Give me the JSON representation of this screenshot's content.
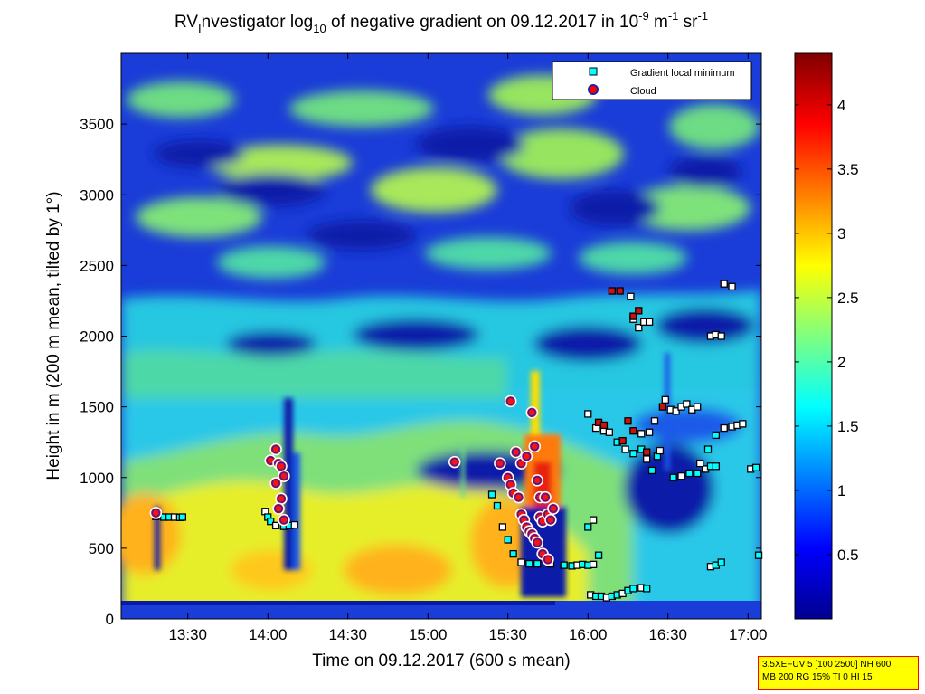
{
  "chart_data": {
    "type": "heatmap",
    "title_parts": {
      "pre": "RV",
      "sub1": "I",
      "mid": "nvestigator log",
      "sub2": "10",
      "post": " of negative gradient on 09.12.2017 in 10",
      "sup1": "-9",
      "unit1": " m",
      "sup2": "-1",
      "unit2": " sr",
      "sup3": "-1"
    },
    "xlabel": "Time on 09.12.2017 (600 s mean)",
    "ylabel": "Height in m (200 m mean, tilted by 1°)",
    "x_range_minutes": [
      785,
      1025
    ],
    "y_range": [
      0,
      4000
    ],
    "x_ticks": [
      {
        "label": "13:30",
        "minutes": 810
      },
      {
        "label": "14:00",
        "minutes": 840
      },
      {
        "label": "14:30",
        "minutes": 870
      },
      {
        "label": "15:00",
        "minutes": 900
      },
      {
        "label": "15:30",
        "minutes": 930
      },
      {
        "label": "16:00",
        "minutes": 960
      },
      {
        "label": "16:30",
        "minutes": 990
      },
      {
        "label": "17:00",
        "minutes": 1020
      }
    ],
    "y_ticks": [
      0,
      500,
      1000,
      1500,
      2000,
      2500,
      3000,
      3500
    ],
    "colorbar": {
      "range": [
        0,
        4.4
      ],
      "ticks": [
        "0.5",
        "1",
        "1.5",
        "2",
        "2.5",
        "3",
        "3.5",
        "4"
      ],
      "colormap": "jet"
    },
    "legend": {
      "position": "top-right",
      "entries": [
        {
          "label": "Gradient local minimum",
          "marker": "square",
          "color": "#00ffff"
        },
        {
          "label": "Cloud",
          "marker": "circle",
          "color": "#ff0000"
        }
      ]
    },
    "gradient_minimum_series": [
      [
        798,
        725
      ],
      [
        801,
        720
      ],
      [
        803,
        720
      ],
      [
        805,
        720
      ],
      [
        807,
        718
      ],
      [
        808,
        720
      ],
      [
        839,
        760
      ],
      [
        840,
        720
      ],
      [
        841,
        690
      ],
      [
        843,
        660
      ],
      [
        846,
        655
      ],
      [
        848,
        660
      ],
      [
        850,
        665
      ],
      [
        924,
        880
      ],
      [
        926,
        800
      ],
      [
        928,
        650
      ],
      [
        930,
        560
      ],
      [
        932,
        460
      ],
      [
        935,
        400
      ],
      [
        938,
        390
      ],
      [
        941,
        390
      ],
      [
        946,
        390
      ],
      [
        951,
        380
      ],
      [
        954,
        375
      ],
      [
        956,
        380
      ],
      [
        958,
        385
      ],
      [
        960,
        380
      ],
      [
        962,
        385
      ],
      [
        964,
        450
      ],
      [
        960,
        650
      ],
      [
        962,
        700
      ],
      [
        960,
        1450
      ],
      [
        963,
        1350
      ],
      [
        966,
        1330
      ],
      [
        968,
        1320
      ],
      [
        971,
        1250
      ],
      [
        974,
        1200
      ],
      [
        977,
        1170
      ],
      [
        980,
        1200
      ],
      [
        980,
        1310
      ],
      [
        983,
        1320
      ],
      [
        985,
        1400
      ],
      [
        982,
        1130
      ],
      [
        984,
        1050
      ],
      [
        986,
        1150
      ],
      [
        987,
        1190
      ],
      [
        989,
        1550
      ],
      [
        991,
        1480
      ],
      [
        993,
        1470
      ],
      [
        995,
        1500
      ],
      [
        997,
        1520
      ],
      [
        999,
        1480
      ],
      [
        1001,
        1500
      ],
      [
        992,
        1000
      ],
      [
        995,
        1010
      ],
      [
        998,
        1030
      ],
      [
        1001,
        1030
      ],
      [
        1004,
        1060
      ],
      [
        1006,
        1080
      ],
      [
        1008,
        1080
      ],
      [
        1002,
        1100
      ],
      [
        1005,
        1200
      ],
      [
        1008,
        1300
      ],
      [
        1011,
        1350
      ],
      [
        1014,
        1360
      ],
      [
        1016,
        1370
      ],
      [
        1018,
        1380
      ],
      [
        1006,
        2000
      ],
      [
        1008,
        2010
      ],
      [
        1010,
        2000
      ],
      [
        1011,
        2370
      ],
      [
        1014,
        2350
      ],
      [
        1021,
        1060
      ],
      [
        1023,
        1070
      ],
      [
        1024,
        450
      ],
      [
        1006,
        370
      ],
      [
        1008,
        380
      ],
      [
        1010,
        400
      ],
      [
        961,
        170
      ],
      [
        963,
        160
      ],
      [
        965,
        160
      ],
      [
        967,
        150
      ],
      [
        969,
        160
      ],
      [
        971,
        170
      ],
      [
        973,
        180
      ],
      [
        975,
        200
      ],
      [
        977,
        215
      ],
      [
        980,
        220
      ],
      [
        982,
        215
      ],
      [
        976,
        2280
      ],
      [
        977,
        2120
      ],
      [
        979,
        2060
      ],
      [
        981,
        2100
      ],
      [
        983,
        2100
      ]
    ],
    "cloud_series": [
      [
        798,
        750
      ],
      [
        843,
        1200
      ],
      [
        841,
        1120
      ],
      [
        844,
        1100
      ],
      [
        845,
        1080
      ],
      [
        846,
        1010
      ],
      [
        843,
        960
      ],
      [
        845,
        850
      ],
      [
        844,
        780
      ],
      [
        846,
        700
      ],
      [
        910,
        1110
      ],
      [
        927,
        1100
      ],
      [
        931,
        1540
      ],
      [
        933,
        1180
      ],
      [
        935,
        1100
      ],
      [
        937,
        1150
      ],
      [
        939,
        1460
      ],
      [
        940,
        1220
      ],
      [
        941,
        980
      ],
      [
        942,
        860
      ],
      [
        930,
        1000
      ],
      [
        931,
        950
      ],
      [
        932,
        890
      ],
      [
        934,
        860
      ],
      [
        935,
        740
      ],
      [
        936,
        700
      ],
      [
        937,
        650
      ],
      [
        938,
        620
      ],
      [
        939,
        600
      ],
      [
        940,
        570
      ],
      [
        941,
        540
      ],
      [
        942,
        720
      ],
      [
        943,
        690
      ],
      [
        944,
        860
      ],
      [
        945,
        740
      ],
      [
        946,
        700
      ],
      [
        943,
        460
      ],
      [
        945,
        420
      ],
      [
        947,
        780
      ]
    ],
    "cloud_red_squares": [
      [
        964,
        1390
      ],
      [
        966,
        1370
      ],
      [
        969,
        2320
      ],
      [
        972,
        2320
      ],
      [
        977,
        2140
      ],
      [
        979,
        2180
      ],
      [
        982,
        1180
      ],
      [
        973,
        1260
      ],
      [
        975,
        1400
      ],
      [
        977,
        1330
      ],
      [
        988,
        1500
      ]
    ]
  },
  "info_box": {
    "line1": "3.5XEFUV 5 [100 2500] NH 600",
    "line2": "MB 200 RG 15% TI 0 HI 15"
  },
  "colors": {
    "background": "#ffffff",
    "marker_edge": "#000000",
    "cloud_edge": "#ffffff",
    "info_box_bg": "#ffff00",
    "info_box_border": "#ff0000"
  }
}
